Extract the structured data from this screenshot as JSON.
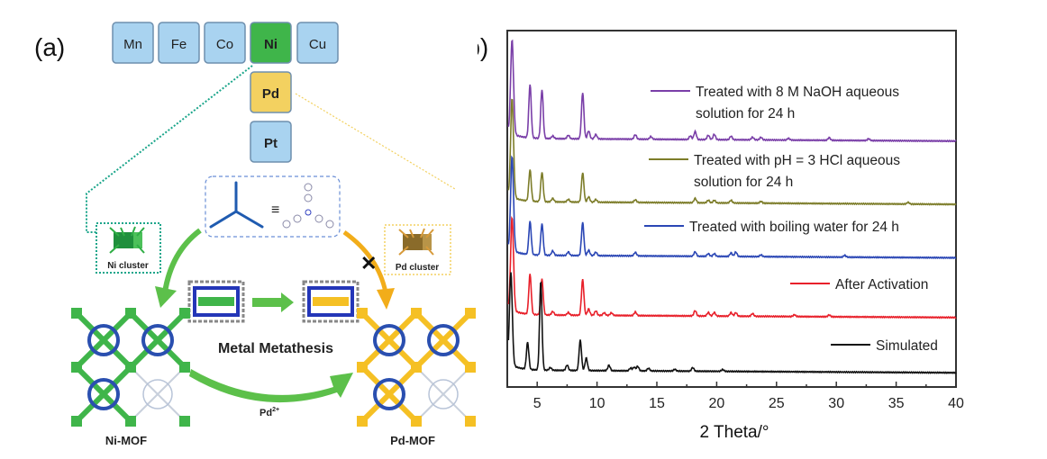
{
  "panel_a": {
    "label": "(a)",
    "elements": [
      {
        "symbol": "Mn",
        "color": "#a9d3f0"
      },
      {
        "symbol": "Fe",
        "color": "#a9d3f0"
      },
      {
        "symbol": "Co",
        "color": "#a9d3f0"
      },
      {
        "symbol": "Ni",
        "color": "#3fb54a"
      },
      {
        "symbol": "Cu",
        "color": "#a9d3f0"
      },
      {
        "symbol": "Pd",
        "color": "#f3d160"
      },
      {
        "symbol": "Pt",
        "color": "#a9d3f0"
      }
    ],
    "ni_cluster_label": "Ni cluster",
    "pd_cluster_label": "Pd cluster",
    "equiv_symbol": "≡",
    "blocked_mark": "✕",
    "process_label": "Metal Metathesis",
    "reagent_label": "Pd",
    "reagent_charge": "2+",
    "ni_mof_label": "Ni-MOF",
    "pd_mof_label": "Pd-MOF",
    "colors": {
      "ni": "#3fb54a",
      "pd": "#f5c024",
      "linker": "#2a4fb0",
      "arrow_green": "#5cc04a",
      "arrow_orange": "#f2ad1a"
    }
  },
  "chart_data": {
    "label": "(b)",
    "type": "line",
    "title": "",
    "xlabel": "2 Theta/°",
    "ylabel": "",
    "xlim": [
      2.5,
      40
    ],
    "ylim": [
      0,
      400
    ],
    "xticks": [
      5,
      10,
      15,
      20,
      25,
      30,
      35,
      40
    ],
    "grid": false,
    "legend_placement": "inline-right",
    "series": [
      {
        "name": "Treated with 8 M NaOH aqueous solution for 24 h",
        "legend_lines": [
          "Treated with 8 M NaOH aqueous",
          "solution for 24 h"
        ],
        "color": "#7a3fa8",
        "offset": 276,
        "peaks": [
          [
            2.9,
            105
          ],
          [
            4.4,
            60
          ],
          [
            5.4,
            55
          ],
          [
            6.3,
            3
          ],
          [
            7.6,
            4
          ],
          [
            8.8,
            52
          ],
          [
            9.3,
            9
          ],
          [
            9.9,
            5
          ],
          [
            13.2,
            5
          ],
          [
            14.5,
            3
          ],
          [
            17.8,
            4
          ],
          [
            18.2,
            9
          ],
          [
            19.3,
            5
          ],
          [
            19.8,
            6
          ],
          [
            21.2,
            4
          ],
          [
            23,
            3
          ],
          [
            23.7,
            3
          ],
          [
            26,
            2
          ],
          [
            29.4,
            3
          ],
          [
            32.7,
            2
          ]
        ]
      },
      {
        "name": "Treated with pH = 3 HCl aqueous solution for 24 h",
        "legend_lines": [
          "Treated with pH = 3 HCl aqueous",
          "solution for 24 h"
        ],
        "color": "#7d7d2a",
        "offset": 205,
        "peaks": [
          [
            2.9,
            110
          ],
          [
            4.4,
            35
          ],
          [
            5.4,
            33
          ],
          [
            6.3,
            4
          ],
          [
            7.6,
            3
          ],
          [
            8.8,
            33
          ],
          [
            9.3,
            6
          ],
          [
            9.9,
            3
          ],
          [
            13.2,
            3
          ],
          [
            18.2,
            5
          ],
          [
            19.3,
            3
          ],
          [
            19.8,
            3
          ],
          [
            21.2,
            3
          ],
          [
            23.7,
            2
          ],
          [
            36,
            2
          ]
        ]
      },
      {
        "name": "Treated with boiling water for 24 h",
        "legend_lines": [
          "Treated with boiling water for 24 h"
        ],
        "color": "#2b47b5",
        "offset": 145,
        "peaks": [
          [
            2.9,
            105
          ],
          [
            4.4,
            37
          ],
          [
            5.4,
            35
          ],
          [
            6.3,
            5
          ],
          [
            7.6,
            4
          ],
          [
            8.8,
            37
          ],
          [
            9.3,
            6
          ],
          [
            9.9,
            4
          ],
          [
            13.2,
            4
          ],
          [
            18.2,
            5
          ],
          [
            19.3,
            3
          ],
          [
            19.8,
            3
          ],
          [
            21.2,
            4
          ],
          [
            21.6,
            5
          ],
          [
            23.7,
            2
          ],
          [
            30.7,
            2
          ]
        ]
      },
      {
        "name": "After Activation",
        "legend_lines": [
          "After Activation"
        ],
        "color": "#e8202a",
        "offset": 78,
        "peaks": [
          [
            2.9,
            104
          ],
          [
            4.4,
            45
          ],
          [
            5.4,
            40
          ],
          [
            6.3,
            4
          ],
          [
            7.6,
            3
          ],
          [
            8.8,
            40
          ],
          [
            9.3,
            7
          ],
          [
            9.9,
            5
          ],
          [
            10.6,
            3
          ],
          [
            11.2,
            3
          ],
          [
            13.2,
            4
          ],
          [
            18.2,
            6
          ],
          [
            19.3,
            4
          ],
          [
            19.8,
            4
          ],
          [
            21.2,
            4
          ],
          [
            21.6,
            4
          ],
          [
            23,
            3
          ],
          [
            26.5,
            2
          ],
          [
            29.4,
            2
          ]
        ]
      },
      {
        "name": "Simulated",
        "legend_lines": [
          "Simulated"
        ],
        "color": "#111111",
        "offset": 16,
        "peaks": [
          [
            2.8,
            103
          ],
          [
            4.2,
            30
          ],
          [
            5.3,
            100
          ],
          [
            6.1,
            3
          ],
          [
            7.5,
            6
          ],
          [
            8.6,
            34
          ],
          [
            9.1,
            14
          ],
          [
            11,
            6
          ],
          [
            12.8,
            3
          ],
          [
            13.1,
            4
          ],
          [
            13.4,
            5
          ],
          [
            14.3,
            3
          ],
          [
            18,
            4
          ],
          [
            16.5,
            2
          ],
          [
            20.5,
            2
          ]
        ]
      }
    ]
  }
}
